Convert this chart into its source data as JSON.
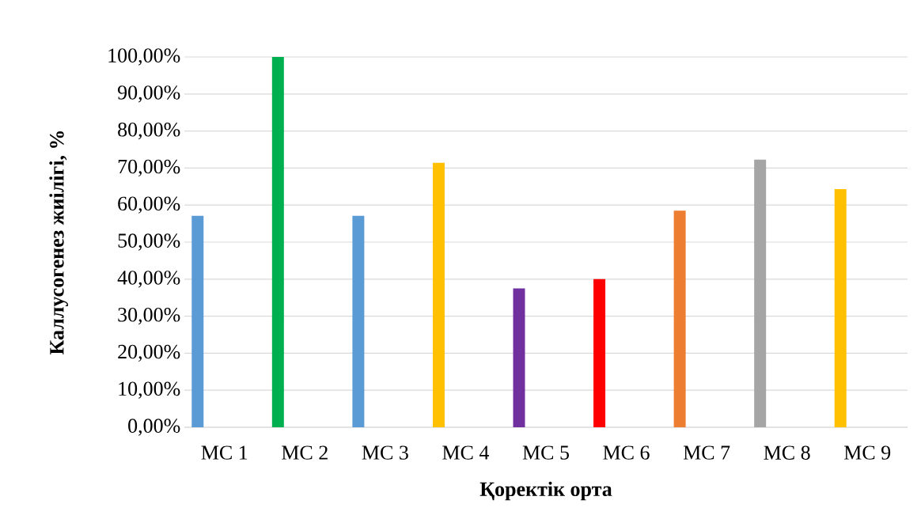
{
  "chart_data": {
    "type": "bar",
    "xlabel": "Қоректік орта",
    "ylabel": "Каллусогенез жиілігі, %",
    "categories": [
      "MC 1",
      "MC 2",
      "MC 3",
      "MC 4",
      "MC 5",
      "MC 6",
      "MC 7",
      "MC 8",
      "MC 9"
    ],
    "values": [
      57.1,
      100,
      57.1,
      71.4,
      37.5,
      40,
      58.5,
      72.3,
      64.3
    ],
    "colors": [
      "#5b9bd5",
      "#00b050",
      "#5b9bd5",
      "#ffc000",
      "#7030a0",
      "#ff0000",
      "#ed7d31",
      "#a5a5a5",
      "#ffc000"
    ],
    "ylim": [
      0,
      100
    ],
    "yticks": [
      {
        "value": 0,
        "label": "0,00%"
      },
      {
        "value": 10,
        "label": "10,00%"
      },
      {
        "value": 20,
        "label": "20,00%"
      },
      {
        "value": 30,
        "label": "30,00%"
      },
      {
        "value": 40,
        "label": "40,00%"
      },
      {
        "value": 50,
        "label": "50,00%"
      },
      {
        "value": 60,
        "label": "60,00%"
      },
      {
        "value": 70,
        "label": "70,00%"
      },
      {
        "value": 80,
        "label": "80,00%"
      },
      {
        "value": 90,
        "label": "90,00%"
      },
      {
        "value": 100,
        "label": "100,00%"
      }
    ],
    "grid": "y"
  }
}
